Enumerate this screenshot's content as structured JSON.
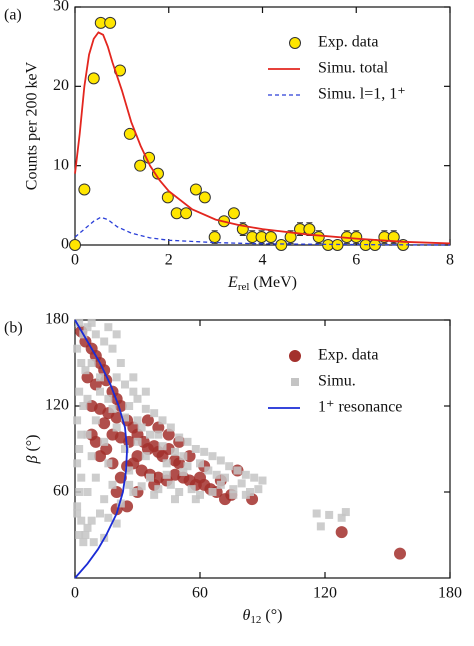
{
  "chart_data": [
    {
      "type": "scatter",
      "panel": "(a)",
      "y_label": "Counts per 200 keV",
      "x_label": {
        "text": "E",
        "sub": "rel",
        "rest": " (MeV)"
      },
      "xlim": [
        0,
        8
      ],
      "xticks": [
        0,
        2,
        4,
        6,
        8
      ],
      "ylim": [
        0,
        30
      ],
      "yticks": [
        0,
        10,
        20,
        30
      ],
      "legend": "upper right",
      "series": [
        {
          "name": "Exp. data",
          "type": "scatter",
          "marker": "circle",
          "color": "#ffe600",
          "x": [
            0,
            0.2,
            0.4,
            0.55,
            0.75,
            0.96,
            1.17,
            1.39,
            1.58,
            1.77,
            1.98,
            2.17,
            2.37,
            2.58,
            2.77,
            2.98,
            3.18,
            3.39,
            3.58,
            3.78,
            3.98,
            4.18,
            4.4,
            4.6,
            4.8,
            5.0,
            5.2,
            5.4,
            5.6,
            5.8,
            6.0,
            6.2,
            6.4,
            6.6,
            6.8,
            7.0
          ],
          "values": [
            0,
            7,
            21,
            28,
            28,
            22,
            14,
            10,
            11,
            9,
            6,
            4,
            4,
            7,
            6,
            1,
            3,
            4,
            2,
            1,
            1,
            1,
            0,
            1,
            2,
            2,
            1,
            0,
            0,
            1,
            1,
            0,
            0,
            1,
            1,
            0
          ],
          "errors": [
            null,
            null,
            null,
            null,
            null,
            null,
            null,
            null,
            null,
            null,
            null,
            null,
            null,
            null,
            null,
            0.8,
            null,
            null,
            0.8,
            0.8,
            0.8,
            0.8,
            null,
            0.8,
            0.8,
            0.8,
            0.8,
            null,
            null,
            0.8,
            0.8,
            null,
            null,
            0.8,
            0.8,
            null
          ]
        },
        {
          "name": "Simu. total",
          "type": "line",
          "color": "#e3261f",
          "dash": false,
          "x": [
            0,
            0.1,
            0.2,
            0.3,
            0.4,
            0.5,
            0.6,
            0.7,
            0.8,
            1.0,
            1.2,
            1.4,
            1.6,
            1.8,
            2.0,
            2.5,
            3.0,
            3.5,
            4.0,
            5.0,
            6.0,
            7.0,
            8.0
          ],
          "values": [
            9,
            14,
            20,
            24,
            26,
            26.8,
            26.5,
            25,
            23,
            19.5,
            15.5,
            12.5,
            10,
            8.2,
            6.8,
            4.5,
            3.2,
            2.5,
            2.0,
            1.3,
            0.8,
            0.4,
            0.2
          ]
        },
        {
          "name": "Simu. l=1, 1⁺",
          "type": "line",
          "color": "#2a3fd8",
          "dash": true,
          "x": [
            0,
            0.2,
            0.4,
            0.55,
            0.7,
            0.9,
            1.2,
            1.6,
            2.0,
            3.0,
            4.0,
            6.0,
            8.0
          ],
          "values": [
            1,
            2,
            3,
            3.5,
            3.2,
            2.3,
            1.5,
            0.9,
            0.6,
            0.3,
            0.15,
            0.05,
            0
          ]
        }
      ]
    },
    {
      "type": "scatter",
      "panel": "(b)",
      "y_label": {
        "text": "β",
        "rest": " (°)"
      },
      "x_label": {
        "text": "θ",
        "sub": "12",
        "rest": " (°)"
      },
      "xlim": [
        0,
        180
      ],
      "xticks": [
        0,
        60,
        120,
        180
      ],
      "ylim": [
        0,
        180
      ],
      "yticks": [
        60,
        120,
        180
      ],
      "legend": "upper right",
      "series": [
        {
          "name": "Exp. data",
          "type": "scatter",
          "marker": "circle",
          "color": "#a3302c",
          "x": [
            3,
            5,
            8,
            10,
            12,
            14,
            6,
            10,
            15,
            18,
            20,
            22,
            8,
            12,
            16,
            20,
            25,
            28,
            14,
            18,
            22,
            26,
            30,
            33,
            35,
            38,
            40,
            42,
            45,
            48,
            50,
            30,
            28,
            25,
            32,
            36,
            40,
            44,
            48,
            52,
            55,
            58,
            60,
            62,
            65,
            68,
            70,
            75,
            78,
            72,
            15,
            12,
            18,
            22,
            20,
            25,
            20,
            35,
            40,
            45,
            50,
            55,
            10,
            8,
            128,
            156,
            85,
            62,
            38,
            30
          ],
          "values": [
            172,
            165,
            160,
            155,
            150,
            145,
            140,
            135,
            138,
            130,
            125,
            120,
            120,
            118,
            115,
            112,
            110,
            105,
            108,
            100,
            98,
            95,
            100,
            95,
            90,
            92,
            88,
            85,
            90,
            82,
            80,
            85,
            80,
            78,
            75,
            72,
            70,
            68,
            72,
            70,
            68,
            65,
            70,
            65,
            62,
            60,
            68,
            58,
            75,
            55,
            90,
            85,
            80,
            70,
            60,
            50,
            48,
            110,
            105,
            100,
            95,
            85,
            95,
            100,
            32,
            17,
            55,
            78,
            65,
            60
          ]
        },
        {
          "name": "Simu.",
          "type": "scatter",
          "marker": "square",
          "color": "#c4c4c4",
          "x": [
            2,
            4,
            6,
            1,
            3,
            5,
            2,
            4,
            1,
            3,
            2,
            1,
            3,
            2,
            1,
            3,
            2,
            4,
            1,
            6,
            10,
            14,
            18,
            22,
            8,
            12,
            20,
            24,
            28,
            6,
            16,
            26,
            30,
            34,
            38,
            42,
            10,
            20,
            30,
            40,
            46,
            50,
            54,
            58,
            62,
            66,
            70,
            74,
            78,
            82,
            86,
            90,
            6,
            14,
            24,
            34,
            44,
            54,
            64,
            72,
            80,
            88,
            8,
            16,
            26,
            36,
            46,
            56,
            66,
            76,
            84,
            10,
            18,
            28,
            38,
            48,
            58,
            6,
            14,
            22,
            12,
            8,
            16,
            20,
            5,
            9,
            14,
            30,
            36,
            42,
            48,
            52,
            60,
            68,
            12,
            18,
            24,
            32,
            28,
            34,
            20,
            16,
            8,
            116,
            122,
            128,
            130,
            118,
            26,
            32,
            40,
            50,
            60,
            70,
            76,
            82,
            44,
            52
          ],
          "values": [
            178,
            170,
            175,
            160,
            150,
            145,
            130,
            120,
            110,
            100,
            90,
            80,
            70,
            60,
            50,
            40,
            30,
            25,
            45,
            35,
            170,
            165,
            160,
            150,
            150,
            140,
            140,
            135,
            130,
            125,
            125,
            120,
            125,
            118,
            115,
            110,
            110,
            105,
            110,
            100,
            105,
            98,
            95,
            90,
            88,
            85,
            82,
            78,
            75,
            72,
            70,
            68,
            100,
            95,
            90,
            85,
            80,
            78,
            75,
            70,
            66,
            62,
            85,
            80,
            75,
            70,
            65,
            62,
            60,
            58,
            60,
            70,
            65,
            60,
            58,
            55,
            55,
            60,
            55,
            52,
            45,
            40,
            42,
            38,
            30,
            25,
            28,
            95,
            100,
            92,
            88,
            85,
            80,
            72,
            130,
            118,
            112,
            105,
            140,
            130,
            170,
            175,
            178,
            45,
            44,
            42,
            46,
            36,
            65,
            64,
            62,
            60,
            58,
            65,
            62,
            58,
            72,
            74
          ]
        },
        {
          "name": "1⁺ resonance",
          "type": "line",
          "color": "#1a2bd6",
          "dash": false,
          "x": [
            0,
            6,
            11,
            15,
            20,
            23,
            24.5,
            25,
            24,
            21,
            17,
            12,
            6,
            0
          ],
          "values": [
            0,
            10,
            20,
            30,
            45,
            60,
            75,
            90,
            105,
            120,
            135,
            150,
            165,
            180
          ]
        }
      ]
    }
  ]
}
